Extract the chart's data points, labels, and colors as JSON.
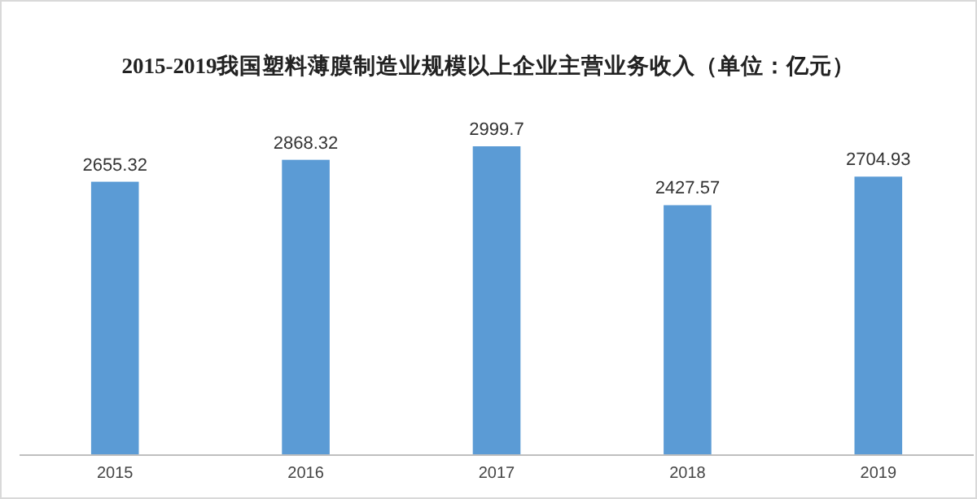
{
  "chart_data": {
    "type": "bar",
    "title": "2015-2019我国塑料薄膜制造业规模以上企业主营业务收入（单位：亿元）",
    "categories": [
      "2015",
      "2016",
      "2017",
      "2018",
      "2019"
    ],
    "values": [
      2655.32,
      2868.32,
      2999.7,
      2427.57,
      2704.93
    ],
    "color": "#5b9bd5",
    "data_labels": true
  }
}
